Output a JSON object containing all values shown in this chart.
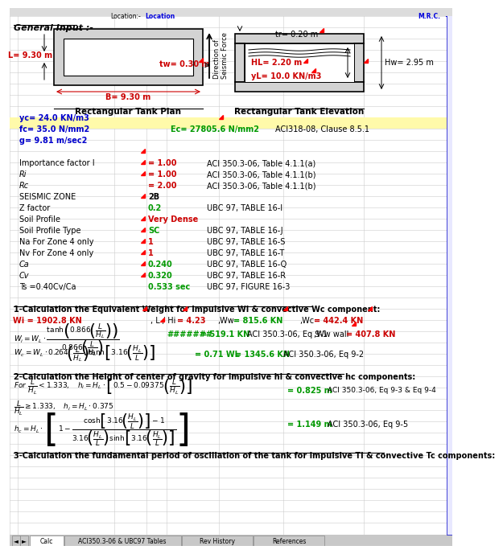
{
  "bg_color": "#FFFFFF",
  "header": {
    "loc_label": "Location:-",
    "loc_val": "Location",
    "mr": "M.R.C."
  },
  "general_input": "General Input :-",
  "plan": {
    "label": "Rectangular Tank Plan",
    "L_label": "L= 9.30 m",
    "tw_label": "tw= 0.30 m",
    "B_label": "B= 9.30 m"
  },
  "elev": {
    "label": "Rectangular Tank Elevation",
    "tr_label": "tr= 0.20 m",
    "HL_label": "HL= 2.20 m",
    "yL_label": "yL= 10.0 KN/m3",
    "Hw_label": "Hw= 2.95 m"
  },
  "dir_label": "Direction of\nSeismic Force",
  "yc": "yc= 24.0 KN/m3",
  "fc": "fc= 35.0 N/mm2",
  "g": "g= 9.81 m/sec2",
  "Ec": "Ec= 27805.6 N/mm2",
  "ACI_Ec": "ACI318-08, Clause 8.5.1",
  "rows": [
    {
      "label": "Importance factor I",
      "val": "= 1.00",
      "ref": "ACI 350.3-06, Table 4.1.1(a)",
      "val_col": "#CC0000",
      "red_corner": true
    },
    {
      "label": "Ri",
      "val": "= 1.00",
      "ref": "ACI 350.3-06, Table 4.1.1(b)",
      "val_col": "#CC0000",
      "red_corner": true,
      "italic": true
    },
    {
      "label": "Rc",
      "val": "= 2.00",
      "ref": "ACI 350.3-06, Table 4.1.1(b)",
      "val_col": "#CC0000",
      "red_corner": true,
      "italic": true
    },
    {
      "label": "SEISMIC ZONE",
      "val": "2B",
      "ref": "",
      "val_col": "#000000",
      "red_corner": false
    },
    {
      "label": "Z factor",
      "val": "0.2",
      "ref": "UBC 97, TABLE 16-I",
      "val_col": "#009900",
      "red_corner": true
    },
    {
      "label": "Soil Profile",
      "val": "Very Dense",
      "ref": "",
      "val_col": "#CC0000",
      "red_corner": false
    },
    {
      "label": "Soil Profile Type",
      "val": "SC",
      "ref": "UBC 97, TABLE 16-J",
      "val_col": "#009900",
      "red_corner": true
    },
    {
      "label": "Na For Zone 4 only",
      "val": "1",
      "ref": "UBC 97, TABLE 16-S",
      "val_col": "#CC0000",
      "red_corner": true
    },
    {
      "label": "Nv For Zone 4 only",
      "val": "1",
      "ref": "UBC 97, TABLE 16-T",
      "val_col": "#CC0000",
      "red_corner": true
    },
    {
      "label": "Ca",
      "val": "0.240",
      "ref": "UBC 97, TABLE 16-Q",
      "val_col": "#009900",
      "red_corner": true,
      "italic": true
    },
    {
      "label": "Cv",
      "val": "0.320",
      "ref": "UBC 97, TABLE 16-R",
      "val_col": "#009900",
      "red_corner": true,
      "italic": true
    },
    {
      "label": "Ts =0.40Cv/Ca",
      "val": "0.533 sec",
      "ref": "UBC 97, FIGURE 16-3",
      "val_col": "#009900",
      "red_corner": true
    }
  ],
  "sec1_title": "1-Calculation the Equivalent Weight for impulsive Wi & convective Wc component:",
  "sec2_title": "2-Calculation the Height of center of gravity for impulsive hi & convective hc components:",
  "sec3_title": "3-Calculation the fundamental period of oscillation of the tank for impulsive Ti & convective Tc components:",
  "tabs": [
    "Calc",
    "ACI350.3-06 & UBC97 Tables",
    "Rev History",
    "References"
  ]
}
